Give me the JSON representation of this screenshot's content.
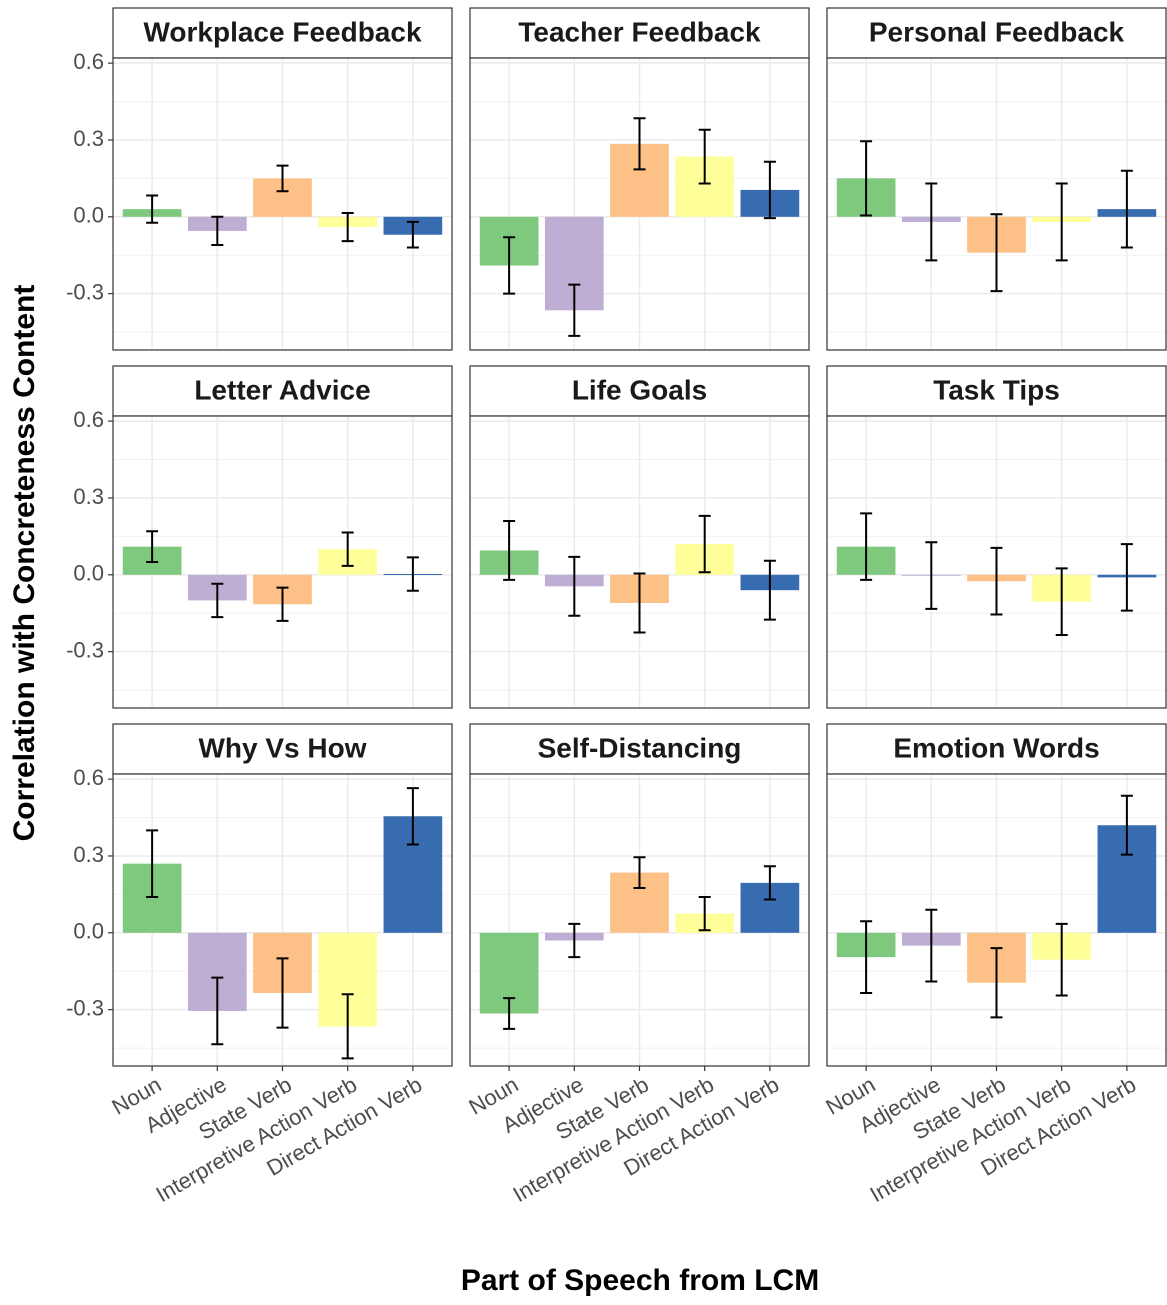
{
  "chart_data": {
    "type": "bar",
    "xlabel": "Part of Speech from LCM",
    "ylabel": "Correlation with Concreteness Content",
    "categories": [
      "Noun",
      "Adjective",
      "State Verb",
      "Interpretive Action Verb",
      "Direct Action Verb"
    ],
    "colors": [
      "#7fc97f",
      "#beaed4",
      "#fdc086",
      "#ffff99",
      "#386cb0"
    ],
    "ylim": [
      -0.52,
      0.62
    ],
    "yticks": [
      -0.3,
      {
        "value": 0,
        "label": "0.0"
      },
      0.3,
      0.6
    ],
    "grid": true,
    "facets": [
      {
        "title": "Workplace Feedback",
        "values": [
          0.03,
          -0.055,
          0.15,
          -0.04,
          -0.07
        ],
        "errors": [
          0.053,
          0.055,
          0.05,
          0.055,
          0.05
        ]
      },
      {
        "title": "Teacher Feedback",
        "values": [
          -0.19,
          -0.365,
          0.285,
          0.235,
          0.105
        ],
        "errors": [
          0.11,
          0.1,
          0.1,
          0.105,
          0.11
        ]
      },
      {
        "title": "Personal Feedback",
        "values": [
          0.15,
          -0.02,
          -0.14,
          -0.02,
          0.03
        ],
        "errors": [
          0.145,
          0.15,
          0.15,
          0.15,
          0.15
        ]
      },
      {
        "title": "Letter Advice",
        "values": [
          0.11,
          -0.1,
          -0.115,
          0.1,
          0.003
        ],
        "errors": [
          0.06,
          0.065,
          0.065,
          0.065,
          0.065
        ]
      },
      {
        "title": "Life Goals",
        "values": [
          0.095,
          -0.045,
          -0.11,
          0.12,
          -0.06
        ],
        "errors": [
          0.115,
          0.115,
          0.115,
          0.11,
          0.115
        ]
      },
      {
        "title": "Task Tips",
        "values": [
          0.11,
          -0.003,
          -0.025,
          -0.105,
          -0.01
        ],
        "errors": [
          0.13,
          0.13,
          0.13,
          0.13,
          0.13
        ]
      },
      {
        "title": "Why Vs How",
        "values": [
          0.27,
          -0.305,
          -0.235,
          -0.365,
          0.455
        ],
        "errors": [
          0.13,
          0.13,
          0.135,
          0.125,
          0.11
        ]
      },
      {
        "title": "Self-Distancing",
        "values": [
          -0.315,
          -0.03,
          0.235,
          0.075,
          0.195
        ],
        "errors": [
          0.06,
          0.065,
          0.06,
          0.065,
          0.065
        ]
      },
      {
        "title": "Emotion Words",
        "values": [
          -0.095,
          -0.05,
          -0.195,
          -0.105,
          0.42
        ],
        "errors": [
          0.14,
          0.14,
          0.135,
          0.14,
          0.115
        ]
      }
    ]
  }
}
